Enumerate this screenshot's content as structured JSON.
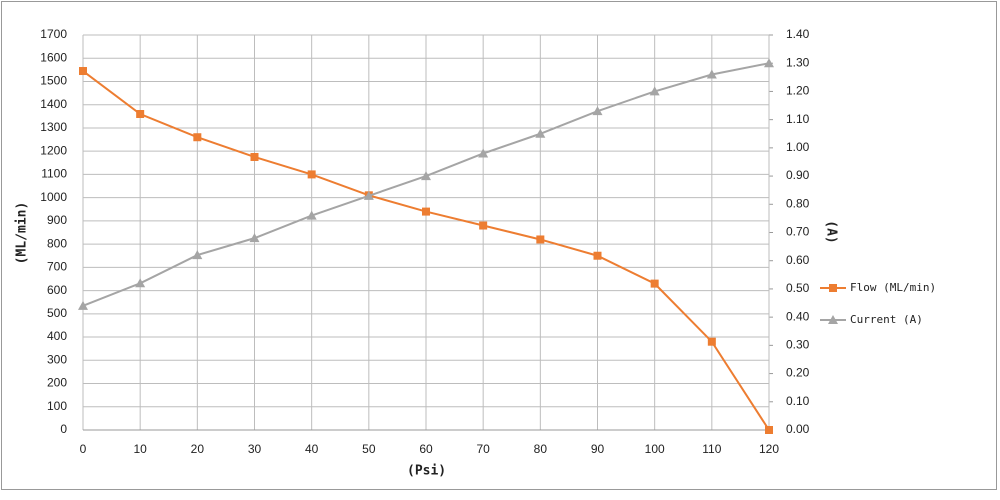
{
  "chart_data": {
    "type": "line",
    "x": [
      0,
      10,
      20,
      30,
      40,
      50,
      60,
      70,
      80,
      90,
      100,
      110,
      120
    ],
    "xlim": [
      0,
      120
    ],
    "xticks": [
      0,
      10,
      20,
      30,
      40,
      50,
      60,
      70,
      80,
      90,
      100,
      110,
      120
    ],
    "x_label": "(Psi)",
    "y_label": "(ML/min)",
    "y2_label": "(A)",
    "ylim": [
      0,
      1700
    ],
    "yticks": [
      0,
      100,
      200,
      300,
      400,
      500,
      600,
      700,
      800,
      900,
      1000,
      1100,
      1200,
      1300,
      1400,
      1500,
      1600,
      1700
    ],
    "y2lim": [
      0,
      1.4
    ],
    "y2ticks": [
      {
        "value": 0,
        "label": "0.00"
      },
      {
        "value": 0.1,
        "label": "0.10"
      },
      {
        "value": 0.2,
        "label": "0.20"
      },
      {
        "value": 0.3,
        "label": "0.30"
      },
      {
        "value": 0.4,
        "label": "0.40"
      },
      {
        "value": 0.5,
        "label": "0.50"
      },
      {
        "value": 0.6,
        "label": "0.60"
      },
      {
        "value": 0.7,
        "label": "0.70"
      },
      {
        "value": 0.8,
        "label": "0.80"
      },
      {
        "value": 0.9,
        "label": "0.90"
      },
      {
        "value": 1.0,
        "label": "1.00"
      },
      {
        "value": 1.1,
        "label": "1.10"
      },
      {
        "value": 1.2,
        "label": "1.20"
      },
      {
        "value": 1.3,
        "label": "1.30"
      },
      {
        "value": 1.4,
        "label": "1.40"
      }
    ],
    "grid": true,
    "legend": "right",
    "series": [
      {
        "name": "Flow (ML/min)",
        "color": "#ed7d31",
        "marker": "square",
        "values": [
          1545,
          1360,
          1260,
          1175,
          1100,
          1010,
          940,
          880,
          820,
          750,
          630,
          380,
          0
        ]
      },
      {
        "name": "Current (A)",
        "color": "#a5a5a5",
        "marker": "triangle",
        "axis": "y2",
        "values": [
          0.44,
          0.52,
          0.62,
          0.68,
          0.76,
          0.83,
          0.9,
          0.98,
          1.05,
          1.13,
          1.2,
          1.26,
          1.3
        ]
      }
    ]
  }
}
